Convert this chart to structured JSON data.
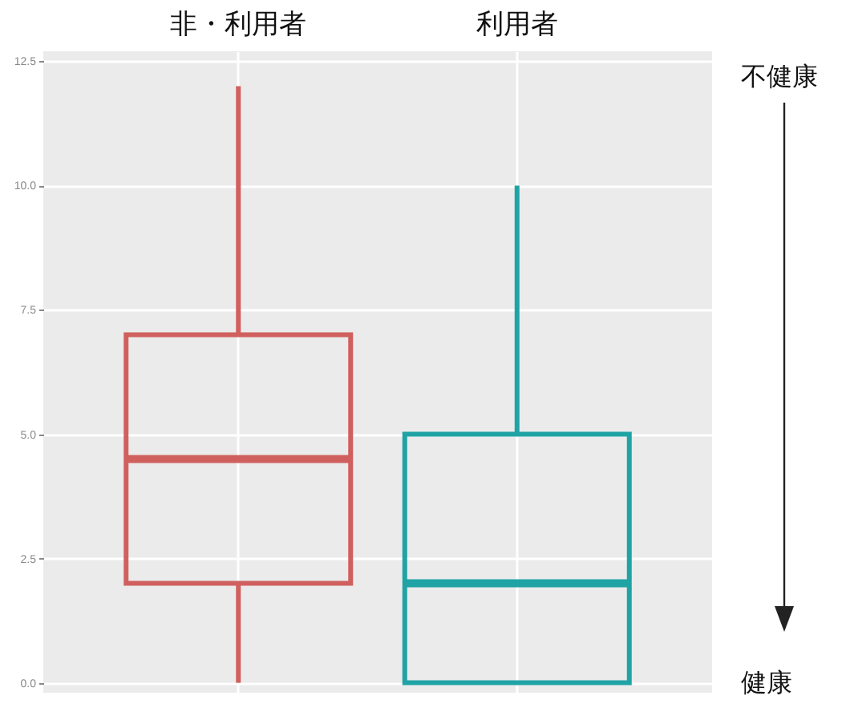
{
  "chart_data": {
    "type": "box",
    "categories": [
      "非・利用者",
      "利用者"
    ],
    "boxes": [
      {
        "low": 0,
        "q1": 2.0,
        "median": 4.5,
        "q3": 7.0,
        "high": 12.0
      },
      {
        "low": 0,
        "q1": 0,
        "median": 2.0,
        "q3": 5.0,
        "high": 10.0
      }
    ],
    "colors": [
      "#d0605e",
      "#1fa3a5"
    ],
    "ylim": [
      -0.2,
      12.7
    ],
    "yticks": [
      {
        "value": 0,
        "label": "0.0"
      },
      {
        "value": 2.5,
        "label": "2.5"
      },
      {
        "value": 5,
        "label": "5.0"
      },
      {
        "value": 7.5,
        "label": "7.5"
      },
      {
        "value": 10,
        "label": "10.0"
      },
      {
        "value": 12.5,
        "label": "12.5"
      }
    ],
    "grid": true,
    "annotations": [
      "不健康",
      "健康"
    ]
  }
}
